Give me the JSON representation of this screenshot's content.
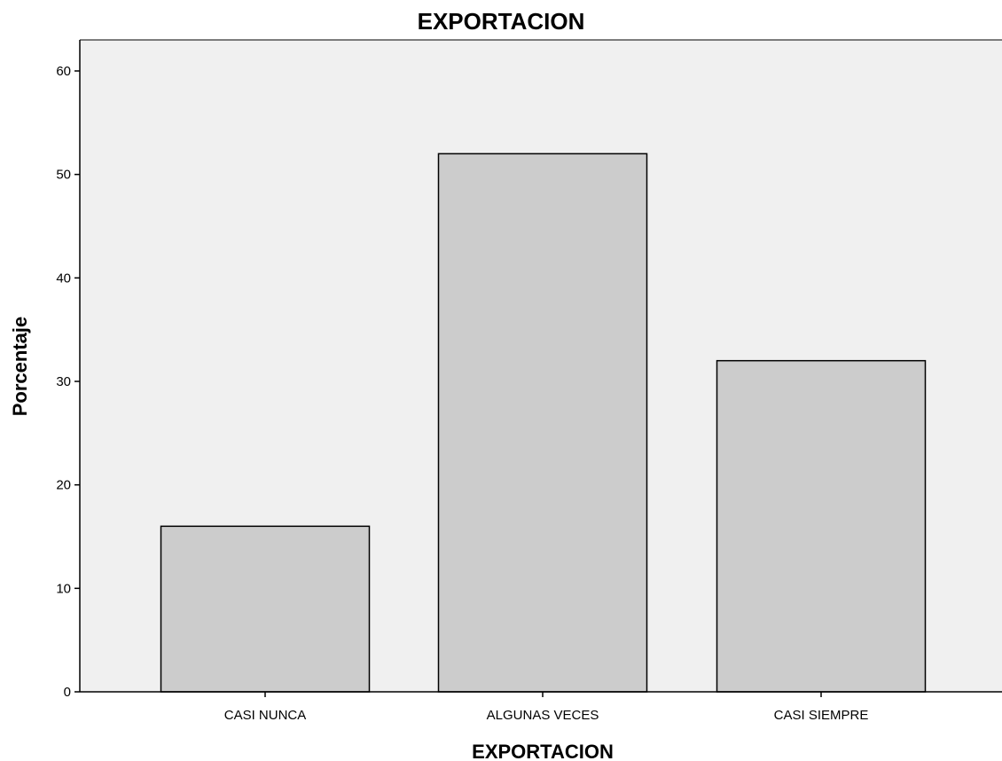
{
  "chart_data": {
    "type": "bar",
    "title": "EXPORTACION",
    "xlabel": "EXPORTACION",
    "ylabel": "Porcentaje",
    "categories": [
      "CASI NUNCA",
      "ALGUNAS VECES",
      "CASI SIEMPRE"
    ],
    "values": [
      16,
      52,
      32
    ],
    "ylim": [
      0,
      63
    ],
    "yticks": [
      0,
      10,
      20,
      30,
      40,
      50,
      60
    ],
    "grid": false,
    "legend": "none",
    "colors": {
      "plot_background": "#f0f0f0",
      "bar_fill": "#cccccc",
      "bar_stroke": "#000000",
      "axis": "#000000"
    }
  }
}
